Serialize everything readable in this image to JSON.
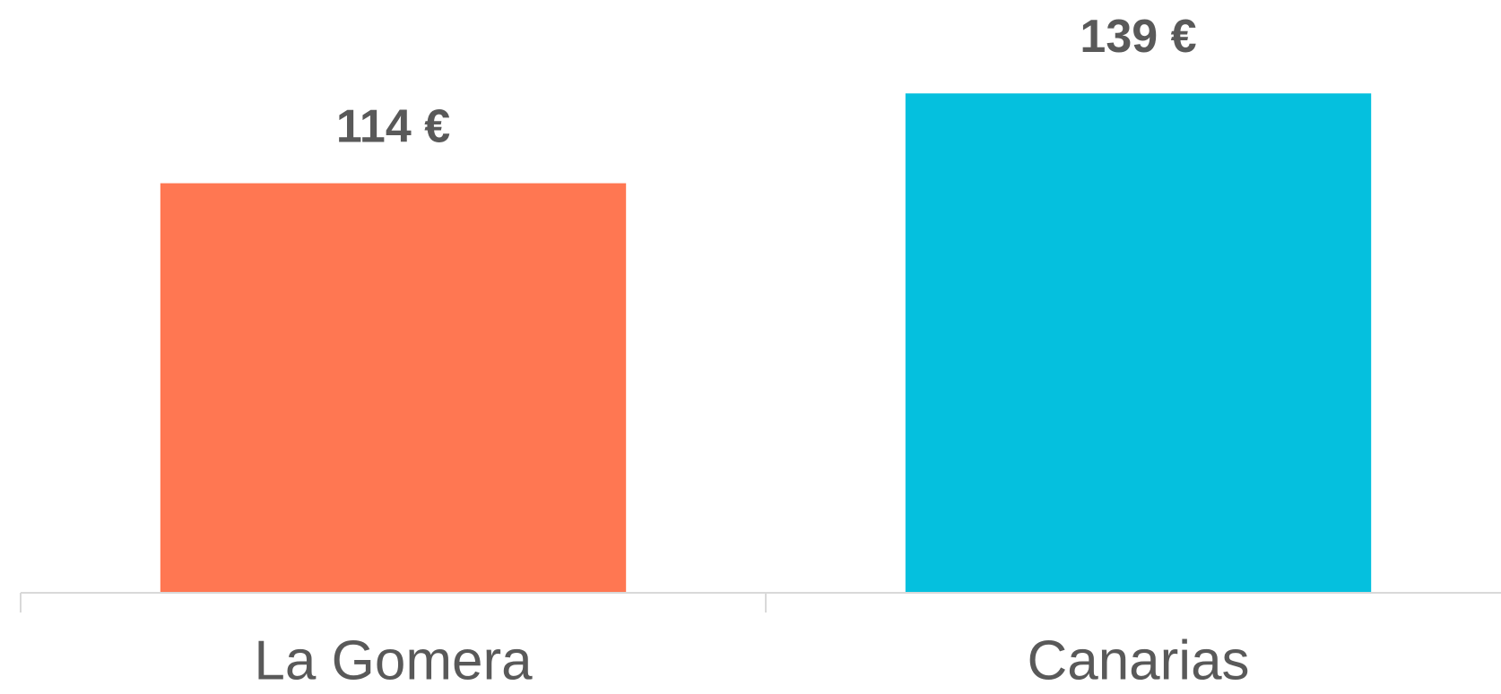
{
  "chart_data": {
    "type": "bar",
    "categories": [
      "La Gomera",
      "Canarias"
    ],
    "values": [
      114,
      139
    ],
    "value_labels": [
      "114 €",
      "139 €"
    ],
    "colors": [
      "#ff7752",
      "#05c0de"
    ],
    "ylim": [
      0,
      165
    ]
  }
}
